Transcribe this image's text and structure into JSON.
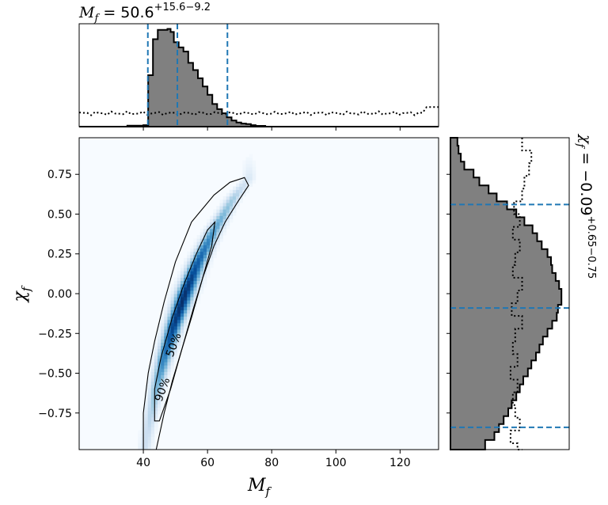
{
  "chart_data": [
    {
      "panel": "top-marginal",
      "type": "histogram",
      "parameter": "M_f",
      "title": {
        "base": "M",
        "sub": "f",
        "eq": " = 50.6",
        "sup": "+15.6",
        "low": "−9.2"
      },
      "xlim": [
        20,
        132
      ],
      "quantiles": [
        41.4,
        50.6,
        66.2
      ],
      "bins": [
        [
          20,
          0
        ],
        [
          30,
          0
        ],
        [
          35,
          0.01
        ],
        [
          40,
          0.015
        ],
        [
          41.5,
          0.5
        ],
        [
          43.0,
          0.85
        ],
        [
          44.5,
          0.94
        ],
        [
          46.0,
          0.94
        ],
        [
          47.5,
          0.95
        ],
        [
          48.5,
          0.92
        ],
        [
          49.5,
          0.82
        ],
        [
          51.0,
          0.77
        ],
        [
          52.5,
          0.73
        ],
        [
          54.0,
          0.62
        ],
        [
          55.5,
          0.55
        ],
        [
          57.0,
          0.47
        ],
        [
          58.5,
          0.39
        ],
        [
          60.0,
          0.31
        ],
        [
          61.5,
          0.22
        ],
        [
          63.0,
          0.17
        ],
        [
          64.5,
          0.13
        ],
        [
          66.0,
          0.09
        ],
        [
          67.5,
          0.06
        ],
        [
          69.0,
          0.04
        ],
        [
          70.5,
          0.03
        ],
        [
          72.0,
          0.025
        ],
        [
          73.5,
          0.015
        ],
        [
          75.0,
          0.008
        ],
        [
          78.0,
          0.0
        ],
        [
          132,
          0
        ]
      ],
      "prior_level": 0.13,
      "prior_edge_right": 0.19
    },
    {
      "panel": "right-marginal",
      "type": "histogram",
      "parameter": "chi_f",
      "title": {
        "base": "χ",
        "sub": "f",
        "eq": " = −0.09",
        "sup": "+0.65",
        "low": "−0.75"
      },
      "ylim": [
        -0.98,
        0.98
      ],
      "quantiles": [
        -0.84,
        -0.09,
        0.56
      ],
      "bins": [
        [
          0.98,
          0.06
        ],
        [
          0.93,
          0.07
        ],
        [
          0.88,
          0.09
        ],
        [
          0.83,
          0.12
        ],
        [
          0.78,
          0.2
        ],
        [
          0.73,
          0.25
        ],
        [
          0.68,
          0.33
        ],
        [
          0.63,
          0.4
        ],
        [
          0.58,
          0.49
        ],
        [
          0.53,
          0.57
        ],
        [
          0.48,
          0.64
        ],
        [
          0.43,
          0.71
        ],
        [
          0.38,
          0.75
        ],
        [
          0.33,
          0.79
        ],
        [
          0.28,
          0.84
        ],
        [
          0.23,
          0.87
        ],
        [
          0.18,
          0.88
        ],
        [
          0.13,
          0.91
        ],
        [
          0.08,
          0.94
        ],
        [
          0.03,
          0.96
        ],
        [
          -0.02,
          0.96
        ],
        [
          -0.07,
          0.93
        ],
        [
          -0.12,
          0.92
        ],
        [
          -0.17,
          0.88
        ],
        [
          -0.22,
          0.84
        ],
        [
          -0.27,
          0.8
        ],
        [
          -0.32,
          0.77
        ],
        [
          -0.37,
          0.74
        ],
        [
          -0.42,
          0.7
        ],
        [
          -0.47,
          0.67
        ],
        [
          -0.52,
          0.63
        ],
        [
          -0.57,
          0.6
        ],
        [
          -0.62,
          0.57
        ],
        [
          -0.67,
          0.53
        ],
        [
          -0.72,
          0.5
        ],
        [
          -0.77,
          0.46
        ],
        [
          -0.82,
          0.42
        ],
        [
          -0.87,
          0.38
        ],
        [
          -0.92,
          0.3
        ],
        [
          -0.98,
          0.25
        ]
      ],
      "prior": [
        [
          0.98,
          0.62
        ],
        [
          0.9,
          0.7
        ],
        [
          0.82,
          0.68
        ],
        [
          0.74,
          0.64
        ],
        [
          0.66,
          0.62
        ],
        [
          0.58,
          0.55
        ],
        [
          0.5,
          0.6
        ],
        [
          0.42,
          0.54
        ],
        [
          0.34,
          0.6
        ],
        [
          0.26,
          0.56
        ],
        [
          0.18,
          0.54
        ],
        [
          0.1,
          0.62
        ],
        [
          0.02,
          0.58
        ],
        [
          -0.06,
          0.53
        ],
        [
          -0.14,
          0.62
        ],
        [
          -0.22,
          0.56
        ],
        [
          -0.3,
          0.54
        ],
        [
          -0.38,
          0.58
        ],
        [
          -0.46,
          0.52
        ],
        [
          -0.54,
          0.58
        ],
        [
          -0.62,
          0.54
        ],
        [
          -0.7,
          0.56
        ],
        [
          -0.78,
          0.6
        ],
        [
          -0.86,
          0.52
        ],
        [
          -0.94,
          0.58
        ],
        [
          -0.98,
          0.62
        ]
      ]
    },
    {
      "panel": "joint",
      "type": "heatmap",
      "xlabel": {
        "base": "M",
        "sub": "f"
      },
      "ylabel": {
        "base": "χ",
        "sub": "f"
      },
      "xlim": [
        20,
        132
      ],
      "ylim": [
        -0.98,
        0.98
      ],
      "xticks": [
        40,
        60,
        80,
        100,
        120
      ],
      "yticks": [
        0.75,
        0.5,
        0.25,
        0.0,
        -0.25,
        -0.5,
        -0.75
      ],
      "ytick_labels": [
        "0.75",
        "0.50",
        "0.25",
        "0.00",
        "−0.25",
        "−0.50",
        "−0.75"
      ],
      "ridge": [
        [
          40.5,
          -0.98
        ],
        [
          42.0,
          -0.8
        ],
        [
          44.0,
          -0.6
        ],
        [
          46.5,
          -0.4
        ],
        [
          49.5,
          -0.2
        ],
        [
          53.0,
          0.0
        ],
        [
          57.0,
          0.2
        ],
        [
          62.0,
          0.4
        ],
        [
          68.0,
          0.6
        ],
        [
          73.0,
          0.73
        ]
      ],
      "contour_50": [
        [
          43.5,
          -0.78
        ],
        [
          43.5,
          -0.6
        ],
        [
          45.5,
          -0.4
        ],
        [
          49.0,
          -0.15
        ],
        [
          52.5,
          0.05
        ],
        [
          56.5,
          0.25
        ],
        [
          60.0,
          0.4
        ],
        [
          62.3,
          0.45
        ],
        [
          61.3,
          0.3
        ],
        [
          58.5,
          0.1
        ],
        [
          55.5,
          -0.1
        ],
        [
          52.0,
          -0.35
        ],
        [
          48.5,
          -0.6
        ],
        [
          45.0,
          -0.8
        ],
        [
          43.5,
          -0.8
        ]
      ],
      "contour_90": [
        [
          40.0,
          -0.98
        ],
        [
          40.0,
          -0.75
        ],
        [
          41.5,
          -0.5
        ],
        [
          43.5,
          -0.3
        ],
        [
          46.5,
          -0.05
        ],
        [
          50.0,
          0.2
        ],
        [
          55.0,
          0.45
        ],
        [
          62.0,
          0.62
        ],
        [
          67.0,
          0.7
        ],
        [
          71.5,
          0.73
        ],
        [
          72.8,
          0.68
        ],
        [
          69.5,
          0.58
        ],
        [
          65.5,
          0.45
        ],
        [
          62.0,
          0.3
        ],
        [
          58.5,
          0.1
        ],
        [
          55.0,
          -0.15
        ],
        [
          52.0,
          -0.35
        ],
        [
          49.0,
          -0.55
        ],
        [
          46.5,
          -0.75
        ],
        [
          44.0,
          -0.98
        ]
      ],
      "contour_labels": [
        "50%",
        "90%"
      ],
      "cmap": [
        "#f7fbff",
        "#deebf7",
        "#c6dbef",
        "#9ecae1",
        "#6baed6",
        "#4292c6",
        "#2171b5",
        "#08519c",
        "#08306b"
      ]
    }
  ]
}
